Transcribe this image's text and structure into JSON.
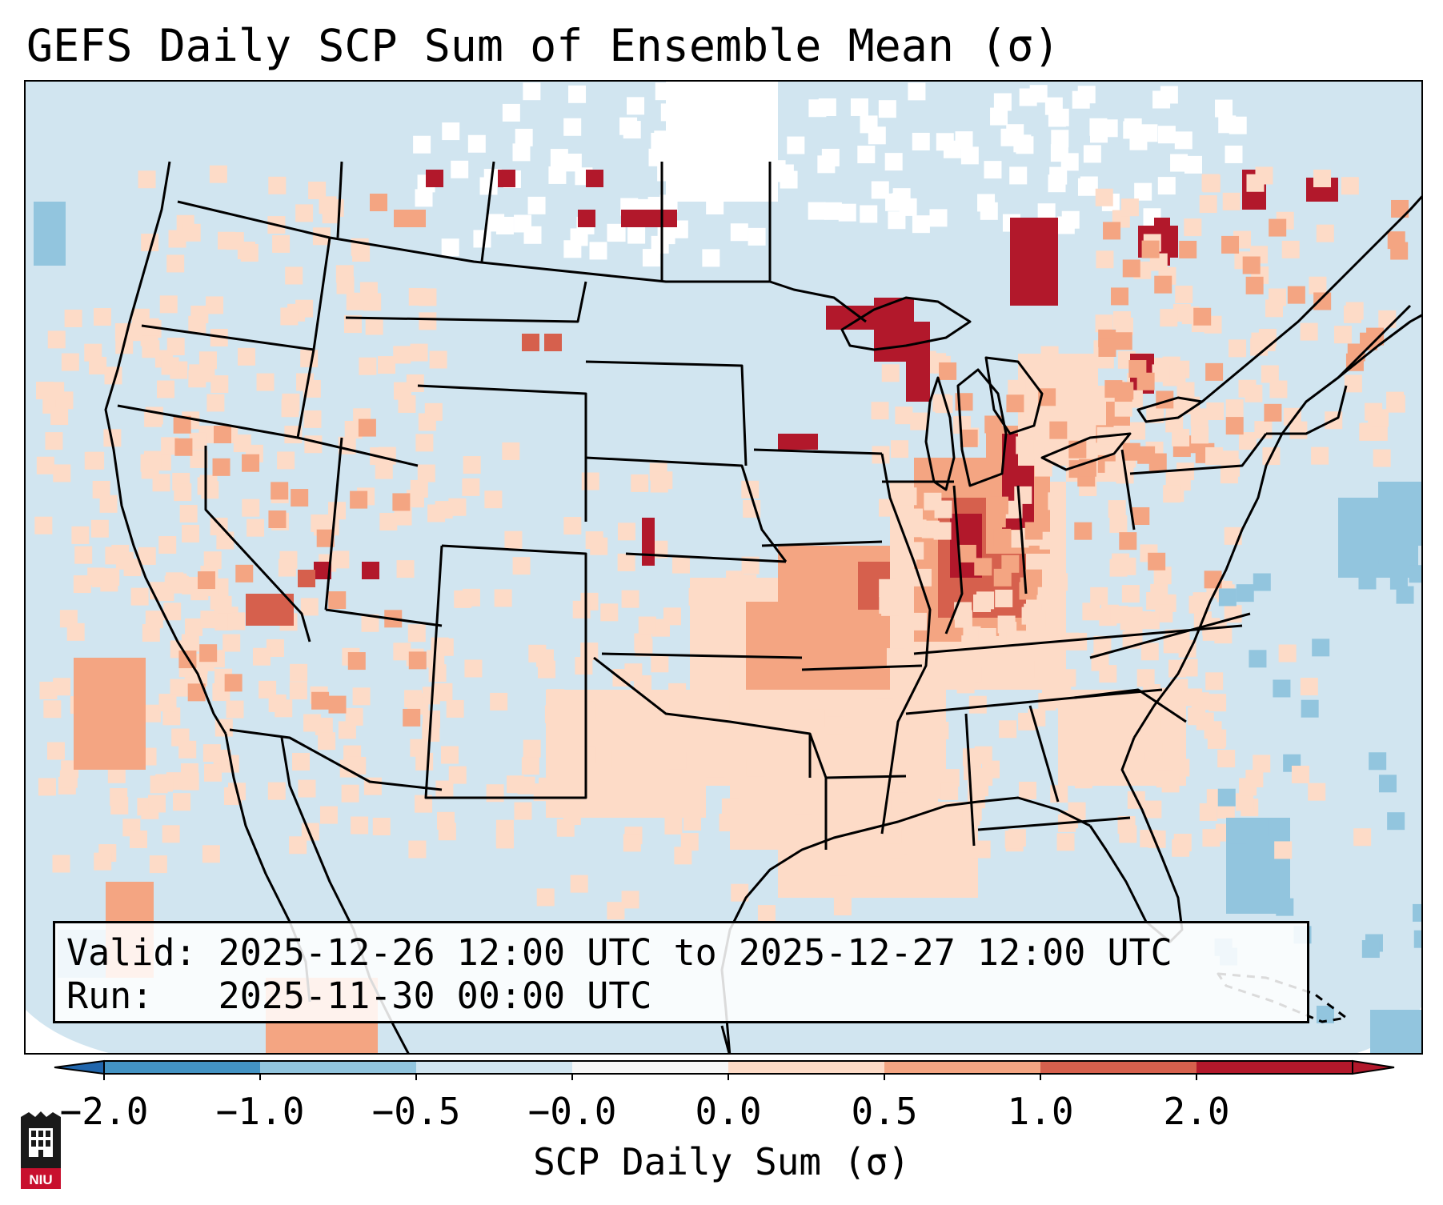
{
  "title": "GEFS Daily SCP Sum of Ensemble Mean (σ)",
  "info": {
    "valid_label": "Valid:",
    "valid_value": "2025-12-26 12:00 UTC to 2025-12-27 12:00 UTC",
    "run_label": "Run:",
    "run_value": "2025-11-30 00:00 UTC"
  },
  "colorbar": {
    "label": "SCP Daily Sum (σ)",
    "ticks": [
      "−2.0",
      "−1.0",
      "−0.5",
      "−0.0",
      "0.0",
      "0.5",
      "1.0",
      "2.0"
    ],
    "bin_colors": [
      "#4393c3",
      "#92c5de",
      "#d1e5f0",
      "#f7f7f7",
      "#fddbc7",
      "#f4a582",
      "#d6604d",
      "#b2182b"
    ],
    "extend_low_color": "#2166ac",
    "extend_high_color": "#b2182b"
  },
  "colors": {
    "background_field": "#d1e5f0",
    "no_data": "#ffffff",
    "borders": "#000000"
  },
  "logo": {
    "text": "NIU"
  }
}
